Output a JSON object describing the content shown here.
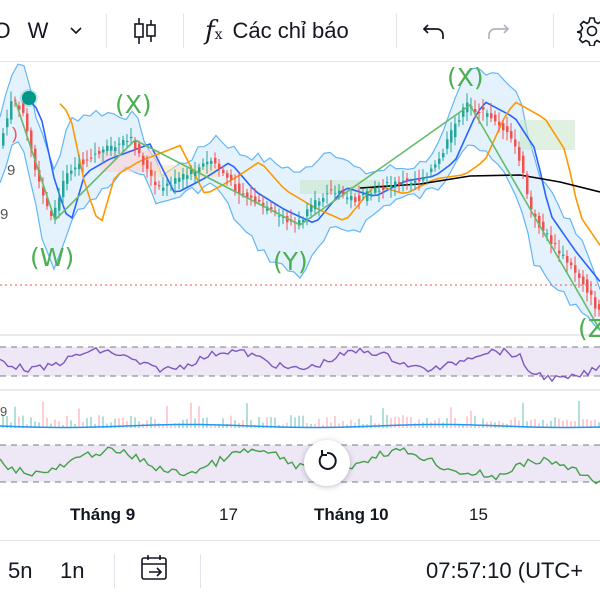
{
  "toolbar": {
    "symbol_fragment": "O",
    "interval": "W",
    "indicators_label": "Các chỉ báo",
    "indicators_icon": "fx-icon",
    "chart_type_icon": "candles-icon",
    "undo_icon": "undo-icon",
    "redo_icon": "redo-icon",
    "settings_icon": "gear-icon"
  },
  "wave_labels": {
    "w": "(W)",
    "x1": "(X)",
    "y": "(Y)",
    "x2": "(X)",
    "z": "(Z"
  },
  "price_labels": {
    "r": ")",
    "nine": "9"
  },
  "x_axis": {
    "labels": [
      "Tháng 9",
      "17",
      "Tháng 10",
      "15"
    ]
  },
  "bottombar": {
    "range_5n": "5n",
    "range_1n": "1n",
    "goto_date_icon": "calendar-goto-icon",
    "clock": "07:57:10 (UTC+"
  },
  "colors": {
    "up_candle": "#26a69a",
    "down_candle": "#ef5350",
    "bollinger": "#64b5f6",
    "bollinger_fill": "#e3f2fd",
    "wave_line": "#66bb6a",
    "ma_fast": "#2962ff",
    "ma_mid": "#ff9800",
    "ma_slow": "#000000",
    "rsi_line": "#7e57c2",
    "osc_line": "#43a047"
  },
  "reset_icon": "reset-icon"
}
